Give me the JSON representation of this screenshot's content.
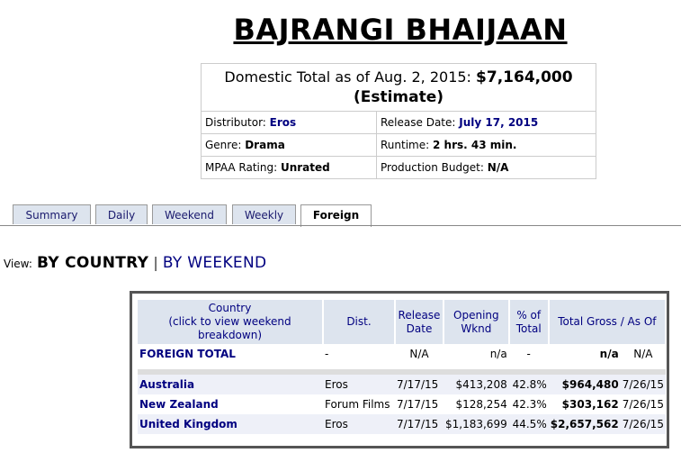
{
  "movie": {
    "title": "BAJRANGI BHAIJAAN",
    "domestic_label": "Domestic Total as of Aug. 2, 2015:",
    "domestic_total": "$7,164,000",
    "estimate": "(Estimate)",
    "distributor_label": "Distributor:",
    "distributor": "Eros",
    "release_date_label": "Release Date:",
    "release_date": "July 17, 2015",
    "genre_label": "Genre:",
    "genre": "Drama",
    "runtime_label": "Runtime:",
    "runtime": "2 hrs. 43 min.",
    "mpaa_label": "MPAA Rating:",
    "mpaa": "Unrated",
    "budget_label": "Production Budget:",
    "budget": "N/A"
  },
  "tabs": [
    {
      "label": "Summary",
      "active": false
    },
    {
      "label": "Daily",
      "active": false
    },
    {
      "label": "Weekend",
      "active": false
    },
    {
      "label": "Weekly",
      "active": false
    },
    {
      "label": "Foreign",
      "active": true
    }
  ],
  "view": {
    "label": "View:",
    "by_country": "BY COUNTRY",
    "separator": "|",
    "by_weekend": "BY WEEKEND"
  },
  "foreign": {
    "headers": {
      "country_line1": "Country",
      "country_line2": "(click to view weekend breakdown)",
      "dist": "Dist.",
      "release_line1": "Release",
      "release_line2": "Date",
      "opening_line1": "Opening",
      "opening_line2": "Wknd",
      "pct_line1": "% of",
      "pct_line2": "Total",
      "total_gross": "Total Gross / As Of"
    },
    "total_row": {
      "label": "FOREIGN TOTAL",
      "dist": "-",
      "release": "N/A",
      "opening": "n/a",
      "pct": "-",
      "gross": "n/a",
      "as_of": "N/A"
    },
    "rows": [
      {
        "country": "Australia",
        "dist": "Eros",
        "release": "7/17/15",
        "opening": "$413,208",
        "pct": "42.8%",
        "gross": "$964,480",
        "as_of": "7/26/15"
      },
      {
        "country": "New Zealand",
        "dist": "Forum Films",
        "release": "7/17/15",
        "opening": "$128,254",
        "pct": "42.3%",
        "gross": "$303,162",
        "as_of": "7/26/15"
      },
      {
        "country": "United Kingdom",
        "dist": "Eros",
        "release": "7/17/15",
        "opening": "$1,183,699",
        "pct": "44.5%",
        "gross": "$2,657,562",
        "as_of": "7/26/15"
      }
    ]
  },
  "colors": {
    "link": "#000080",
    "header_bg": "#dde4ee",
    "alt_row": "#eef0f8"
  }
}
